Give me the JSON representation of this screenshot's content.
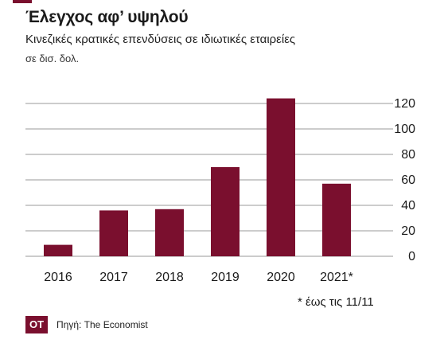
{
  "header": {
    "title": "Έλεγχος αφ’ υψηλού",
    "subtitle": "Κινεζικές κρατικές επενδύσεις σε ιδιωτικές εταιρείες",
    "unit": "σε δισ. δολ."
  },
  "chart_data": {
    "type": "bar",
    "categories": [
      "2016",
      "2017",
      "2018",
      "2019",
      "2020",
      "2021*"
    ],
    "values": [
      9,
      36,
      37,
      70,
      124,
      57
    ],
    "ylim": [
      0,
      120
    ],
    "yticks": [
      0,
      20,
      40,
      60,
      80,
      100,
      120
    ],
    "y_axis_side": "right",
    "grid": true,
    "bar_color": "#7a0f2e",
    "grid_color": "#9a9a9a"
  },
  "footer": {
    "footnote": "* έως τις 11/11",
    "logo_text": "OT",
    "source": "Πηγή: The Economist"
  }
}
